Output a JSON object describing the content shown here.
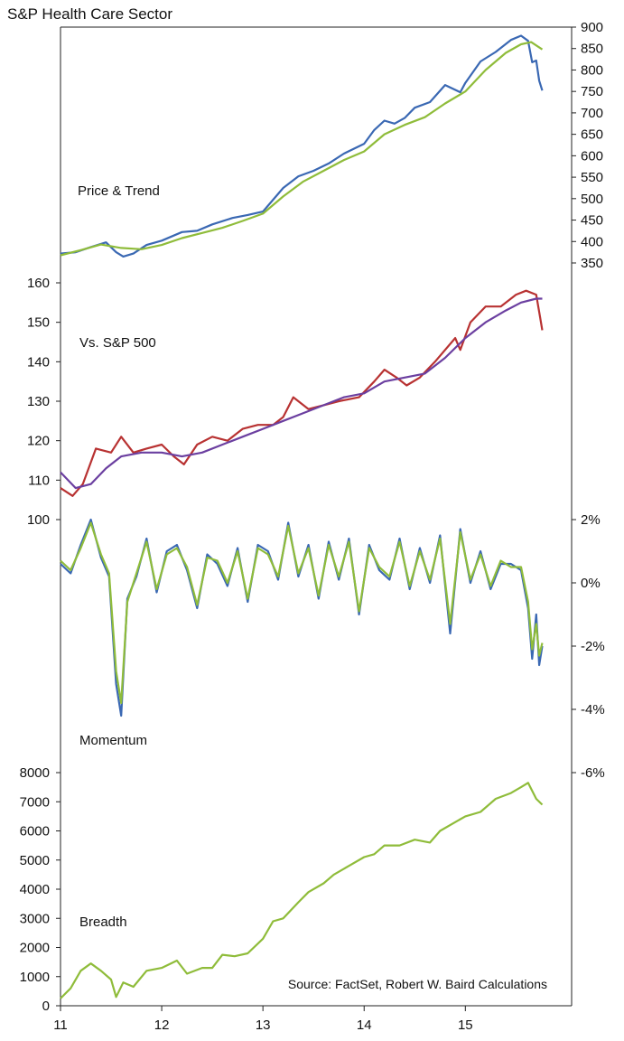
{
  "chart_data": {
    "title": "S&P Health Care Sector",
    "source": "Source: FactSet, Robert W. Baird Calculations",
    "x_axis": {
      "ticks": [
        "11",
        "12",
        "13",
        "14",
        "15"
      ],
      "tick_values": [
        2011,
        2012,
        2013,
        2014,
        2015
      ],
      "range": [
        2011,
        2016.05
      ]
    },
    "panels": [
      {
        "id": "price",
        "type": "line",
        "label": "Price & Trend",
        "y_axis_side": "right",
        "ylim": [
          350,
          900
        ],
        "yticks": [
          "900",
          "850",
          "800",
          "750",
          "700",
          "650",
          "600",
          "550",
          "500",
          "450",
          "400",
          "350"
        ],
        "ytick_values": [
          900,
          850,
          800,
          750,
          700,
          650,
          600,
          550,
          500,
          450,
          400,
          350
        ],
        "series": [
          {
            "color": "#3a68b3",
            "x": [
              2011.0,
              2011.15,
              2011.3,
              2011.45,
              2011.55,
              2011.62,
              2011.72,
              2011.85,
              2012.0,
              2012.2,
              2012.35,
              2012.5,
              2012.7,
              2012.85,
              2013.0,
              2013.2,
              2013.35,
              2013.5,
              2013.65,
              2013.8,
              2014.0,
              2014.1,
              2014.2,
              2014.3,
              2014.4,
              2014.5,
              2014.65,
              2014.8,
              2014.95,
              2015.0,
              2015.15,
              2015.3,
              2015.45,
              2015.55,
              2015.62,
              2015.66,
              2015.7,
              2015.73,
              2015.76
            ],
            "y": [
              372,
              375,
              387,
              398,
              375,
              365,
              372,
              392,
              402,
              422,
              425,
              440,
              455,
              462,
              470,
              525,
              552,
              565,
              582,
              605,
              628,
              660,
              682,
              675,
              688,
              712,
              725,
              765,
              748,
              770,
              820,
              842,
              870,
              880,
              868,
              818,
              822,
              775,
              752
            ],
            "name": ""
          },
          {
            "color": "#8fbc3a",
            "x": [
              2011.0,
              2011.2,
              2011.4,
              2011.6,
              2011.8,
              2012.0,
              2012.2,
              2012.4,
              2012.6,
              2012.8,
              2013.0,
              2013.2,
              2013.4,
              2013.6,
              2013.8,
              2014.0,
              2014.2,
              2014.4,
              2014.6,
              2014.8,
              2015.0,
              2015.2,
              2015.4,
              2015.55,
              2015.65,
              2015.76
            ],
            "y": [
              368,
              380,
              393,
              385,
              382,
              392,
              408,
              420,
              432,
              448,
              465,
              505,
              540,
              565,
              590,
              610,
              650,
              672,
              690,
              722,
              750,
              800,
              840,
              860,
              865,
              848
            ],
            "name": ""
          }
        ]
      },
      {
        "id": "relative",
        "type": "line",
        "label": "Vs. S&P 500",
        "y_axis_side": "left",
        "ylim": [
          100,
          160
        ],
        "yticks": [
          "160",
          "150",
          "140",
          "130",
          "120",
          "110",
          "100"
        ],
        "ytick_values": [
          160,
          150,
          140,
          130,
          120,
          110,
          100
        ],
        "series": [
          {
            "color": "#b83232",
            "x": [
              2011.0,
              2011.12,
              2011.22,
              2011.35,
              2011.5,
              2011.6,
              2011.72,
              2011.85,
              2012.0,
              2012.12,
              2012.22,
              2012.35,
              2012.5,
              2012.65,
              2012.8,
              2012.95,
              2013.1,
              2013.2,
              2013.3,
              2013.45,
              2013.6,
              2013.75,
              2013.95,
              2014.1,
              2014.2,
              2014.32,
              2014.42,
              2014.55,
              2014.7,
              2014.9,
              2014.95,
              2015.05,
              2015.2,
              2015.35,
              2015.5,
              2015.6,
              2015.7,
              2015.74,
              2015.76
            ],
            "y": [
              108,
              106,
              109,
              118,
              117,
              121,
              117,
              118,
              119,
              116,
              114,
              119,
              121,
              120,
              123,
              124,
              124,
              126,
              131,
              128,
              129,
              130,
              131,
              135,
              138,
              136,
              134,
              136,
              140,
              146,
              143,
              150,
              154,
              154,
              157,
              158,
              157,
              151,
              148
            ],
            "name": ""
          },
          {
            "color": "#6b3fa0",
            "x": [
              2011.0,
              2011.15,
              2011.3,
              2011.45,
              2011.6,
              2011.8,
              2012.0,
              2012.2,
              2012.4,
              2012.6,
              2012.8,
              2013.0,
              2013.2,
              2013.4,
              2013.6,
              2013.8,
              2014.0,
              2014.2,
              2014.4,
              2014.6,
              2014.8,
              2015.0,
              2015.2,
              2015.4,
              2015.55,
              2015.7,
              2015.76
            ],
            "y": [
              112,
              108,
              109,
              113,
              116,
              117,
              117,
              116,
              117,
              119,
              121,
              123,
              125,
              127,
              129,
              131,
              132,
              135,
              136,
              137,
              141,
              146,
              150,
              153,
              155,
              156,
              156
            ],
            "name": ""
          }
        ]
      },
      {
        "id": "momentum",
        "type": "line",
        "label": "Momentum",
        "y_axis_side": "right",
        "ylim": [
          -6,
          2
        ],
        "yticks": [
          "2%",
          "0%",
          "-2%",
          "-4%",
          "-6%"
        ],
        "ytick_values": [
          2,
          0,
          -2,
          -4,
          -6
        ],
        "series": [
          {
            "color": "#3a68b3",
            "x": [
              2011.0,
              2011.1,
              2011.2,
              2011.3,
              2011.4,
              2011.48,
              2011.55,
              2011.6,
              2011.66,
              2011.75,
              2011.85,
              2011.95,
              2012.05,
              2012.15,
              2012.25,
              2012.35,
              2012.45,
              2012.55,
              2012.65,
              2012.75,
              2012.85,
              2012.95,
              2013.05,
              2013.15,
              2013.25,
              2013.35,
              2013.45,
              2013.55,
              2013.65,
              2013.75,
              2013.85,
              2013.95,
              2014.05,
              2014.15,
              2014.25,
              2014.35,
              2014.45,
              2014.55,
              2014.65,
              2014.75,
              2014.85,
              2014.95,
              2015.05,
              2015.15,
              2015.25,
              2015.35,
              2015.45,
              2015.55,
              2015.62,
              2015.66,
              2015.7,
              2015.73,
              2015.76
            ],
            "y": [
              0.6,
              0.3,
              1.2,
              2.0,
              0.8,
              0.2,
              -3.2,
              -4.2,
              -0.5,
              0.2,
              1.4,
              -0.3,
              1.0,
              1.2,
              0.4,
              -0.8,
              0.9,
              0.6,
              -0.1,
              1.1,
              -0.6,
              1.2,
              1.0,
              0.1,
              1.9,
              0.2,
              1.2,
              -0.5,
              1.3,
              0.1,
              1.4,
              -1.0,
              1.2,
              0.4,
              0.1,
              1.4,
              -0.2,
              1.1,
              0.0,
              1.5,
              -1.6,
              1.7,
              0.0,
              1.0,
              -0.2,
              0.6,
              0.6,
              0.4,
              -0.8,
              -2.4,
              -1.0,
              -2.6,
              -2.0
            ],
            "name": ""
          },
          {
            "color": "#8fbc3a",
            "x": [
              2011.0,
              2011.1,
              2011.2,
              2011.3,
              2011.4,
              2011.48,
              2011.55,
              2011.6,
              2011.66,
              2011.75,
              2011.85,
              2011.95,
              2012.05,
              2012.15,
              2012.25,
              2012.35,
              2012.45,
              2012.55,
              2012.65,
              2012.75,
              2012.85,
              2012.95,
              2013.05,
              2013.15,
              2013.25,
              2013.35,
              2013.45,
              2013.55,
              2013.65,
              2013.75,
              2013.85,
              2013.95,
              2014.05,
              2014.15,
              2014.25,
              2014.35,
              2014.45,
              2014.55,
              2014.65,
              2014.75,
              2014.85,
              2014.95,
              2015.05,
              2015.15,
              2015.25,
              2015.35,
              2015.45,
              2015.55,
              2015.62,
              2015.66,
              2015.7,
              2015.73,
              2015.76
            ],
            "y": [
              0.7,
              0.4,
              1.1,
              1.9,
              0.9,
              0.3,
              -2.8,
              -3.8,
              -0.6,
              0.3,
              1.3,
              -0.2,
              0.9,
              1.1,
              0.5,
              -0.7,
              0.8,
              0.7,
              0.0,
              1.0,
              -0.5,
              1.1,
              0.9,
              0.2,
              1.8,
              0.3,
              1.1,
              -0.4,
              1.2,
              0.2,
              1.3,
              -0.9,
              1.1,
              0.5,
              0.2,
              1.3,
              -0.1,
              1.0,
              0.1,
              1.4,
              -1.3,
              1.6,
              0.1,
              0.9,
              -0.1,
              0.7,
              0.5,
              0.5,
              -0.6,
              -2.1,
              -1.3,
              -2.3,
              -1.9
            ],
            "name": ""
          }
        ]
      },
      {
        "id": "breadth",
        "type": "line",
        "label": "Breadth",
        "y_axis_side": "left",
        "ylim": [
          0,
          8000
        ],
        "yticks": [
          "8000",
          "7000",
          "6000",
          "5000",
          "4000",
          "3000",
          "2000",
          "1000",
          "0"
        ],
        "ytick_values": [
          8000,
          7000,
          6000,
          5000,
          4000,
          3000,
          2000,
          1000,
          0
        ],
        "series": [
          {
            "color": "#8fbc3a",
            "x": [
              2011.0,
              2011.1,
              2011.2,
              2011.3,
              2011.4,
              2011.5,
              2011.55,
              2011.62,
              2011.72,
              2011.85,
              2012.0,
              2012.15,
              2012.25,
              2012.4,
              2012.5,
              2012.6,
              2012.72,
              2012.85,
              2013.0,
              2013.1,
              2013.2,
              2013.35,
              2013.45,
              2013.6,
              2013.7,
              2013.85,
              2014.0,
              2014.1,
              2014.2,
              2014.35,
              2014.5,
              2014.65,
              2014.75,
              2014.9,
              2015.0,
              2015.15,
              2015.3,
              2015.45,
              2015.55,
              2015.62,
              2015.7,
              2015.76
            ],
            "y": [
              250,
              600,
              1200,
              1450,
              1200,
              900,
              300,
              800,
              650,
              1200,
              1300,
              1550,
              1100,
              1300,
              1300,
              1750,
              1700,
              1800,
              2300,
              2900,
              3000,
              3550,
              3900,
              4200,
              4500,
              4800,
              5100,
              5200,
              5500,
              5500,
              5700,
              5600,
              6000,
              6300,
              6500,
              6650,
              7100,
              7300,
              7500,
              7650,
              7100,
              6900
            ],
            "name": ""
          }
        ]
      }
    ]
  }
}
